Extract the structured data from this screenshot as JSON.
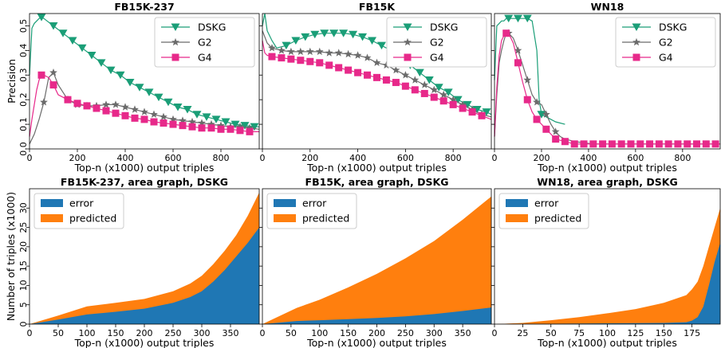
{
  "chart_data": [
    {
      "type": "line",
      "title": "FB15K-237",
      "xlabel": "Top-n (x1000) output triples",
      "ylabel": "Precision",
      "xlim": [
        0,
        960
      ],
      "ylim": [
        0,
        0.55
      ],
      "xticks": [
        0,
        200,
        400,
        600,
        800
      ],
      "yticks": [
        0.0,
        0.1,
        0.2,
        0.3,
        0.4,
        0.5
      ],
      "legend": "top-right",
      "grid": false,
      "series": [
        {
          "name": "DSKG",
          "color": "#1a9e77",
          "marker": "triangle-down",
          "x": [
            0,
            10,
            20,
            30,
            40,
            50,
            60,
            100,
            140,
            180,
            220,
            260,
            300,
            340,
            380,
            420,
            460,
            500,
            540,
            580,
            620,
            660,
            700,
            740,
            780,
            820,
            860,
            900,
            940,
            960
          ],
          "y": [
            0.3,
            0.49,
            0.51,
            0.52,
            0.53,
            0.535,
            0.53,
            0.5,
            0.47,
            0.44,
            0.41,
            0.38,
            0.35,
            0.32,
            0.3,
            0.27,
            0.25,
            0.23,
            0.21,
            0.19,
            0.17,
            0.16,
            0.14,
            0.13,
            0.12,
            0.11,
            0.1,
            0.095,
            0.09,
            0.09
          ],
          "marker_x": [
            50,
            100,
            140,
            180,
            220,
            260,
            300,
            340,
            380,
            420,
            460,
            500,
            540,
            580,
            620,
            660,
            700,
            740,
            780,
            820,
            860,
            900,
            940
          ]
        },
        {
          "name": "G2",
          "color": "#6b6b6b",
          "marker": "star",
          "x": [
            0,
            20,
            40,
            60,
            80,
            100,
            120,
            160,
            200,
            240,
            280,
            320,
            360,
            400,
            440,
            480,
            520,
            560,
            600,
            640,
            680,
            720,
            760,
            800,
            840,
            880,
            920,
            960
          ],
          "y": [
            0.02,
            0.06,
            0.12,
            0.19,
            0.29,
            0.31,
            0.26,
            0.2,
            0.18,
            0.175,
            0.175,
            0.18,
            0.18,
            0.17,
            0.16,
            0.15,
            0.14,
            0.13,
            0.12,
            0.115,
            0.11,
            0.105,
            0.1,
            0.095,
            0.09,
            0.09,
            0.085,
            0.08
          ],
          "marker_x": [
            60,
            100,
            160,
            200,
            240,
            280,
            320,
            360,
            400,
            440,
            480,
            520,
            560,
            600,
            640,
            680,
            720,
            760,
            800,
            840,
            880,
            920
          ]
        },
        {
          "name": "G4",
          "color": "#e7298a",
          "marker": "square",
          "x": [
            0,
            10,
            20,
            30,
            40,
            50,
            60,
            80,
            100,
            120,
            160,
            200,
            240,
            280,
            320,
            360,
            400,
            440,
            480,
            520,
            560,
            600,
            640,
            680,
            720,
            760,
            800,
            840,
            880,
            920,
            960
          ],
          "y": [
            0.05,
            0.12,
            0.18,
            0.24,
            0.28,
            0.3,
            0.3,
            0.29,
            0.26,
            0.22,
            0.2,
            0.185,
            0.175,
            0.165,
            0.155,
            0.145,
            0.135,
            0.125,
            0.12,
            0.11,
            0.105,
            0.1,
            0.095,
            0.09,
            0.085,
            0.085,
            0.08,
            0.08,
            0.075,
            0.07,
            0.07
          ],
          "marker_x": [
            50,
            100,
            160,
            200,
            240,
            280,
            320,
            360,
            400,
            440,
            480,
            520,
            560,
            600,
            640,
            680,
            720,
            760,
            800,
            840,
            880,
            920
          ]
        }
      ]
    },
    {
      "type": "line",
      "title": "FB15K",
      "xlabel": "Top-n (x1000) output triples",
      "ylabel": "",
      "xlim": [
        0,
        960
      ],
      "ylim": [
        0,
        0.55
      ],
      "xticks": [
        0,
        200,
        400,
        600,
        800
      ],
      "yticks": [
        0.0,
        0.1,
        0.2,
        0.3,
        0.4,
        0.5
      ],
      "legend": "top-right",
      "grid": false,
      "series": [
        {
          "name": "DSKG",
          "color": "#1a9e77",
          "marker": "triangle-down",
          "x": [
            0,
            10,
            20,
            40,
            60,
            100,
            140,
            180,
            220,
            260,
            300,
            340,
            380,
            420,
            460,
            500,
            540,
            580,
            620,
            660,
            700,
            740,
            780,
            820,
            860,
            900,
            940,
            960
          ],
          "y": [
            0.5,
            0.55,
            0.48,
            0.44,
            0.41,
            0.42,
            0.44,
            0.455,
            0.465,
            0.47,
            0.47,
            0.47,
            0.465,
            0.455,
            0.44,
            0.42,
            0.4,
            0.37,
            0.34,
            0.31,
            0.28,
            0.25,
            0.23,
            0.2,
            0.18,
            0.16,
            0.15,
            0.14
          ],
          "marker_x": [
            100,
            140,
            180,
            220,
            260,
            300,
            340,
            380,
            420,
            460,
            500,
            540,
            580,
            620,
            660,
            700,
            740,
            780,
            820,
            860,
            900,
            940
          ]
        },
        {
          "name": "G2",
          "color": "#6b6b6b",
          "marker": "star",
          "x": [
            0,
            20,
            40,
            80,
            120,
            160,
            200,
            240,
            280,
            320,
            360,
            400,
            440,
            480,
            520,
            560,
            600,
            640,
            680,
            720,
            760,
            800,
            840,
            880,
            920,
            960
          ],
          "y": [
            0.48,
            0.43,
            0.41,
            0.4,
            0.395,
            0.395,
            0.395,
            0.395,
            0.39,
            0.39,
            0.385,
            0.38,
            0.37,
            0.35,
            0.34,
            0.32,
            0.3,
            0.28,
            0.26,
            0.24,
            0.22,
            0.2,
            0.18,
            0.16,
            0.14,
            0.13
          ],
          "marker_x": [
            40,
            80,
            120,
            160,
            200,
            240,
            280,
            320,
            360,
            400,
            440,
            480,
            520,
            560,
            600,
            640,
            680,
            720,
            760,
            800,
            840,
            880,
            920
          ]
        },
        {
          "name": "G4",
          "color": "#e7298a",
          "marker": "square",
          "x": [
            0,
            10,
            20,
            40,
            80,
            120,
            160,
            200,
            240,
            280,
            320,
            360,
            400,
            440,
            480,
            520,
            560,
            600,
            640,
            680,
            720,
            760,
            800,
            840,
            880,
            920,
            960
          ],
          "y": [
            0.44,
            0.39,
            0.38,
            0.375,
            0.37,
            0.365,
            0.36,
            0.355,
            0.35,
            0.34,
            0.33,
            0.32,
            0.31,
            0.3,
            0.29,
            0.28,
            0.27,
            0.255,
            0.24,
            0.225,
            0.21,
            0.195,
            0.18,
            0.165,
            0.15,
            0.135,
            0.12
          ],
          "marker_x": [
            40,
            80,
            120,
            160,
            200,
            240,
            280,
            320,
            360,
            400,
            440,
            480,
            520,
            560,
            600,
            640,
            680,
            720,
            760,
            800,
            840,
            880,
            920
          ]
        }
      ]
    },
    {
      "type": "line",
      "title": "WN18",
      "xlabel": "Top-n (x1000) output triples",
      "ylabel": "",
      "xlim": [
        0,
        960
      ],
      "ylim": [
        0,
        0.55
      ],
      "xticks": [
        0,
        200,
        400,
        600,
        800
      ],
      "yticks": [
        0.0,
        0.1,
        0.2,
        0.3,
        0.4,
        0.5
      ],
      "legend": "top-right",
      "grid": false,
      "series": [
        {
          "name": "DSKG",
          "color": "#1a9e77",
          "marker": "triangle-down",
          "x": [
            0,
            10,
            20,
            30,
            40,
            50,
            60,
            100,
            140,
            160,
            180,
            190,
            200,
            220,
            260,
            300
          ],
          "y": [
            0.28,
            0.5,
            0.51,
            0.52,
            0.52,
            0.53,
            0.53,
            0.53,
            0.53,
            0.52,
            0.4,
            0.2,
            0.14,
            0.13,
            0.11,
            0.1
          ],
          "marker_x": [
            60,
            100,
            140,
            200
          ]
        },
        {
          "name": "G2",
          "color": "#6b6b6b",
          "marker": "star",
          "x": [
            0,
            10,
            20,
            30,
            40,
            50,
            60,
            80,
            100,
            120,
            140,
            160,
            180,
            200,
            220,
            240,
            260,
            280,
            300,
            340,
            380,
            420,
            460,
            500,
            560,
            600,
            660,
            700,
            760,
            800,
            860,
            900,
            960
          ],
          "y": [
            0.05,
            0.22,
            0.35,
            0.4,
            0.44,
            0.47,
            0.47,
            0.45,
            0.4,
            0.34,
            0.28,
            0.22,
            0.19,
            0.18,
            0.14,
            0.1,
            0.07,
            0.05,
            0.04,
            0.03,
            0.025,
            0.02,
            0.02,
            0.02,
            0.02,
            0.02,
            0.02,
            0.02,
            0.02,
            0.02,
            0.02,
            0.02,
            0.02
          ],
          "marker_x": [
            60,
            100,
            140,
            180,
            220,
            260
          ]
        },
        {
          "name": "G4",
          "color": "#e7298a",
          "marker": "square",
          "x": [
            0,
            10,
            20,
            30,
            40,
            50,
            60,
            80,
            100,
            120,
            140,
            160,
            180,
            200,
            220,
            240,
            260,
            280,
            300,
            320,
            340,
            380,
            420,
            460,
            500,
            540,
            580,
            620,
            660,
            700,
            740,
            780,
            820,
            860,
            900,
            940,
            960
          ],
          "y": [
            0.05,
            0.25,
            0.38,
            0.44,
            0.46,
            0.47,
            0.47,
            0.43,
            0.35,
            0.27,
            0.2,
            0.15,
            0.12,
            0.1,
            0.08,
            0.06,
            0.04,
            0.035,
            0.03,
            0.025,
            0.02,
            0.02,
            0.02,
            0.02,
            0.02,
            0.02,
            0.02,
            0.02,
            0.02,
            0.02,
            0.02,
            0.02,
            0.02,
            0.02,
            0.02,
            0.02,
            0.02
          ],
          "marker_x": [
            50,
            100,
            140,
            180,
            220,
            260,
            300,
            340,
            380,
            420,
            460,
            500,
            540,
            580,
            620,
            660,
            700,
            740,
            780,
            820,
            860,
            900,
            940
          ]
        }
      ]
    },
    {
      "type": "area",
      "title": "FB15K-237, area graph, DSKG",
      "xlabel": "Top-n (x1000) output triples",
      "ylabel": "Number of triples  (x1000)",
      "xlim": [
        0,
        400
      ],
      "ylim": [
        0,
        35
      ],
      "xticks": [
        0,
        50,
        100,
        150,
        200,
        250,
        300,
        350
      ],
      "yticks": [
        0,
        5,
        10,
        15,
        20,
        25,
        30
      ],
      "legend": "top-left",
      "series": [
        {
          "name": "error",
          "color": "#1f77b4",
          "x": [
            0,
            50,
            100,
            150,
            200,
            250,
            280,
            300,
            320,
            340,
            360,
            380,
            400
          ],
          "y": [
            0,
            1.2,
            2.5,
            3.2,
            4.0,
            5.5,
            7.0,
            8.5,
            11,
            14,
            17.5,
            21,
            25
          ]
        },
        {
          "name": "predicted",
          "color": "#ff7f0e",
          "x": [
            0,
            50,
            100,
            150,
            200,
            250,
            280,
            300,
            320,
            340,
            360,
            380,
            400
          ],
          "y": [
            0,
            2.2,
            4.6,
            5.5,
            6.5,
            8.5,
            10.5,
            12.5,
            15.5,
            19,
            23,
            28,
            34
          ]
        }
      ]
    },
    {
      "type": "area",
      "title": "FB15K, area graph, DSKG",
      "xlabel": "Top-n (x1000) output triples",
      "ylabel": "",
      "xlim": [
        0,
        400
      ],
      "ylim": [
        0,
        35
      ],
      "xticks": [
        0,
        50,
        100,
        150,
        200,
        250,
        300,
        350
      ],
      "yticks": [
        0,
        5,
        10,
        15,
        20,
        25,
        30
      ],
      "legend": "top-left",
      "series": [
        {
          "name": "error",
          "color": "#1f77b4",
          "x": [
            0,
            60,
            100,
            150,
            200,
            250,
            300,
            350,
            400
          ],
          "y": [
            0,
            0.8,
            1.0,
            1.3,
            1.6,
            2.0,
            2.6,
            3.4,
            4.3
          ]
        },
        {
          "name": "predicted",
          "color": "#ff7f0e",
          "x": [
            0,
            60,
            100,
            150,
            200,
            250,
            300,
            350,
            400
          ],
          "y": [
            0,
            4.2,
            6.3,
            9.5,
            13,
            17,
            21.5,
            27,
            33
          ]
        }
      ]
    },
    {
      "type": "area",
      "title": "WN18, area graph, DSKG",
      "xlabel": "Top-n (x1000) output triples",
      "ylabel": "",
      "xlim": [
        0,
        200
      ],
      "ylim": [
        0,
        35
      ],
      "xticks": [
        0,
        25,
        50,
        75,
        100,
        125,
        150,
        175
      ],
      "yticks": [
        0,
        5,
        10,
        15,
        20,
        25,
        30
      ],
      "legend": "top-left",
      "series": [
        {
          "name": "error",
          "color": "#1f77b4",
          "x": [
            0,
            50,
            100,
            150,
            170,
            175,
            180,
            185,
            190,
            195,
            200
          ],
          "y": [
            0,
            0.1,
            0.2,
            0.3,
            0.5,
            0.9,
            1.8,
            4.5,
            10,
            16,
            21
          ]
        },
        {
          "name": "predicted",
          "color": "#ff7f0e",
          "x": [
            0,
            25,
            50,
            75,
            100,
            125,
            150,
            170,
            175,
            180,
            185,
            190,
            195,
            200
          ],
          "y": [
            0,
            0.3,
            1.0,
            1.8,
            2.8,
            3.9,
            5.5,
            7.5,
            9,
            11,
            15,
            20,
            25,
            30
          ]
        }
      ]
    }
  ]
}
